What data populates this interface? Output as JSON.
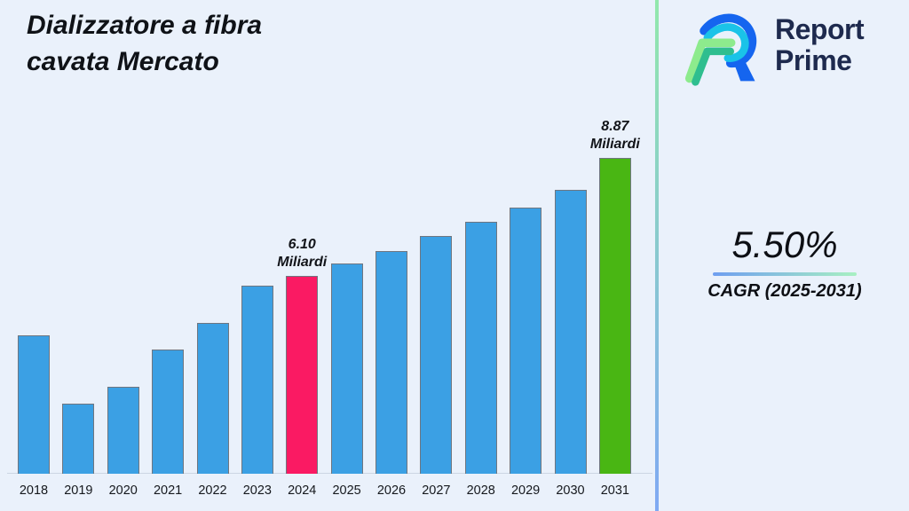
{
  "background": "#EAF1FB",
  "title": {
    "line1": "Dializzatore a fibra",
    "line2": "cavata Mercato"
  },
  "brand": {
    "name_line1": "Report",
    "name_line2": "Prime",
    "text_color": "#1E2A4E",
    "icons": {
      "logo": "report-prime-r-logo"
    },
    "logo_colors": {
      "blue": "#1565EF",
      "cyan": "#1AC3E8",
      "light_green": "#8DEB8D",
      "teal": "#2FBE8F"
    }
  },
  "divider": {
    "top_color": "#92E8AC",
    "bottom_color": "#7FA9F3"
  },
  "cagr": {
    "value": "5.50%",
    "label": "CAGR (2025-2031)",
    "underline_from": "#6E9EF0",
    "underline_to": "#A8F0C2"
  },
  "chart_data": {
    "type": "bar",
    "title": "Dializzatore a fibra cavata Mercato",
    "unit": "Miliardi",
    "xlabel": "",
    "ylabel": "",
    "grid": false,
    "legend": false,
    "categories": [
      "2018",
      "2019",
      "2020",
      "2021",
      "2022",
      "2023",
      "2024",
      "2025",
      "2026",
      "2027",
      "2028",
      "2029",
      "2030",
      "2031"
    ],
    "values": [
      4.7,
      3.1,
      3.5,
      4.37,
      5.0,
      5.87,
      6.1,
      6.39,
      6.68,
      7.04,
      7.37,
      7.7,
      8.12,
      8.87
    ],
    "ylim": [
      1.46,
      8.87
    ],
    "bar_color_default": "#3BA0E4",
    "bar_border_color": "#6F7680",
    "highlight_colors": {
      "2024": "#FA1A63",
      "2031": "#49B613"
    },
    "annotations": [
      {
        "category": "2024",
        "lines": [
          "6.10",
          "Miliardi"
        ]
      },
      {
        "category": "2031",
        "lines": [
          "8.87",
          "Miliardi"
        ]
      }
    ]
  }
}
